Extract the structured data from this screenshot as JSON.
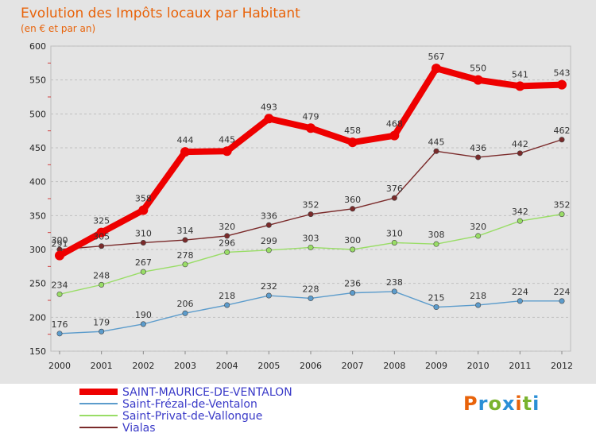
{
  "chart_data": {
    "type": "line",
    "title": "Evolution des Impôts locaux par Habitant",
    "subtitle": "(en € et par an)",
    "x": [
      "2000",
      "2001",
      "2002",
      "2003",
      "2004",
      "2005",
      "2006",
      "2007",
      "2008",
      "2009",
      "2010",
      "2011",
      "2012"
    ],
    "ylim": [
      150,
      600
    ],
    "yticks": [
      150,
      200,
      250,
      300,
      350,
      400,
      450,
      500,
      550,
      600
    ],
    "grid": "horizontal",
    "legend_position": "bottom-left",
    "series": [
      {
        "name": "SAINT-MAURICE-DE-VENTALON",
        "color": "#ee0000",
        "values": [
          291,
          325,
          358,
          444,
          445,
          493,
          479,
          458,
          468,
          567,
          550,
          541,
          543
        ]
      },
      {
        "name": "Saint-Frézal-de-Ventalon",
        "color": "#5c9ccc",
        "values": [
          176,
          179,
          190,
          206,
          218,
          232,
          228,
          236,
          238,
          215,
          218,
          224,
          224
        ]
      },
      {
        "name": "Saint-Privat-de-Vallongue",
        "color": "#99dd66",
        "values": [
          234,
          248,
          267,
          278,
          296,
          299,
          303,
          300,
          310,
          308,
          320,
          342,
          352
        ]
      },
      {
        "name": "Vialas",
        "color": "#7a2a2a",
        "values": [
          300,
          305,
          310,
          314,
          320,
          336,
          352,
          360,
          376,
          445,
          436,
          442,
          462
        ]
      }
    ]
  },
  "logo": {
    "text": "Proxiti"
  }
}
